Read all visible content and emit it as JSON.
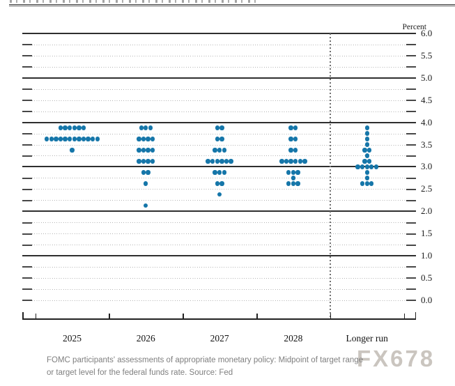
{
  "chart_data": {
    "type": "scatter",
    "subtype": "fomc-dot-plot",
    "ylabel": "Percent",
    "ylim": [
      0.0,
      6.0
    ],
    "ytick_label_step": 0.5,
    "ygrid_step": 0.25,
    "ytick_labels": [
      "6.0",
      "5.5",
      "5.0",
      "4.5",
      "4.0",
      "3.5",
      "3.0",
      "2.5",
      "2.0",
      "1.5",
      "1.0",
      "0.5",
      "0.0"
    ],
    "grid": "dotted-quarters-solid-integers",
    "separator_after_category": "2028",
    "dot_color": "#1576a9",
    "categories": [
      "2025",
      "2026",
      "2027",
      "2028",
      "Longer run"
    ],
    "series": [
      {
        "label": "2025",
        "dots": [
          {
            "rate": 3.875,
            "count": 6
          },
          {
            "rate": 3.625,
            "count": 12
          },
          {
            "rate": 3.375,
            "count": 1
          }
        ]
      },
      {
        "label": "2026",
        "dots": [
          {
            "rate": 3.875,
            "count": 3
          },
          {
            "rate": 3.625,
            "count": 4
          },
          {
            "rate": 3.375,
            "count": 4
          },
          {
            "rate": 3.125,
            "count": 4
          },
          {
            "rate": 2.875,
            "count": 2
          },
          {
            "rate": 2.625,
            "count": 1
          },
          {
            "rate": 2.125,
            "count": 1
          }
        ]
      },
      {
        "label": "2027",
        "dots": [
          {
            "rate": 3.875,
            "count": 2
          },
          {
            "rate": 3.625,
            "count": 2
          },
          {
            "rate": 3.375,
            "count": 3
          },
          {
            "rate": 3.125,
            "count": 6
          },
          {
            "rate": 2.875,
            "count": 3
          },
          {
            "rate": 2.625,
            "count": 2
          },
          {
            "rate": 2.375,
            "count": 1
          }
        ]
      },
      {
        "label": "2028",
        "dots": [
          {
            "rate": 3.875,
            "count": 2
          },
          {
            "rate": 3.625,
            "count": 2
          },
          {
            "rate": 3.375,
            "count": 2
          },
          {
            "rate": 3.125,
            "count": 6
          },
          {
            "rate": 2.875,
            "count": 3
          },
          {
            "rate": 2.75,
            "count": 1
          },
          {
            "rate": 2.625,
            "count": 3
          }
        ]
      },
      {
        "label": "Longer run",
        "dots": [
          {
            "rate": 3.875,
            "count": 1
          },
          {
            "rate": 3.75,
            "count": 1
          },
          {
            "rate": 3.625,
            "count": 1
          },
          {
            "rate": 3.5,
            "count": 1
          },
          {
            "rate": 3.375,
            "count": 2
          },
          {
            "rate": 3.25,
            "count": 1
          },
          {
            "rate": 3.125,
            "count": 2
          },
          {
            "rate": 3.0,
            "count": 5
          },
          {
            "rate": 2.875,
            "count": 1
          },
          {
            "rate": 2.75,
            "count": 1
          },
          {
            "rate": 2.625,
            "count": 3
          }
        ]
      }
    ]
  },
  "footer": {
    "caption_line1": "FOMC participants' assessments of appropriate monetary policy: Midpoint of target range",
    "caption_line2": "or target level for the federal funds rate. Source: Fed",
    "watermark": "FX678"
  }
}
